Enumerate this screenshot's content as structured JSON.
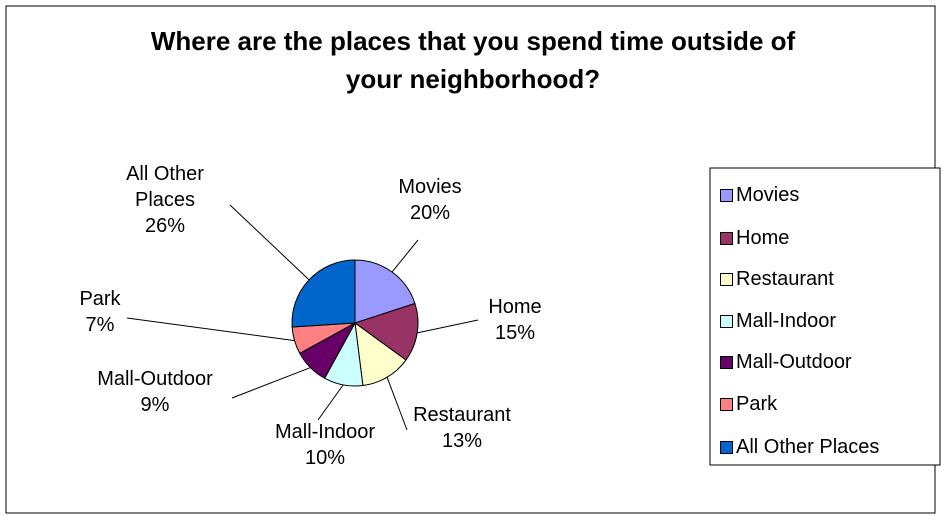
{
  "chart_data": {
    "type": "pie",
    "title": "Where are the places that you spend time outside of your neighborhood?",
    "categories": [
      "Movies",
      "Home",
      "Restaurant",
      "Mall-Indoor",
      "Mall-Outdoor",
      "Park",
      "All Other Places"
    ],
    "values": [
      20,
      15,
      13,
      10,
      9,
      7,
      26
    ],
    "value_labels": [
      "20%",
      "15%",
      "13%",
      "10%",
      "9%",
      "7%",
      "26%"
    ],
    "colors": [
      "#9999ff",
      "#993366",
      "#ffffcc",
      "#ccffff",
      "#660066",
      "#ff8080",
      "#0066cc"
    ],
    "legend": "right"
  }
}
